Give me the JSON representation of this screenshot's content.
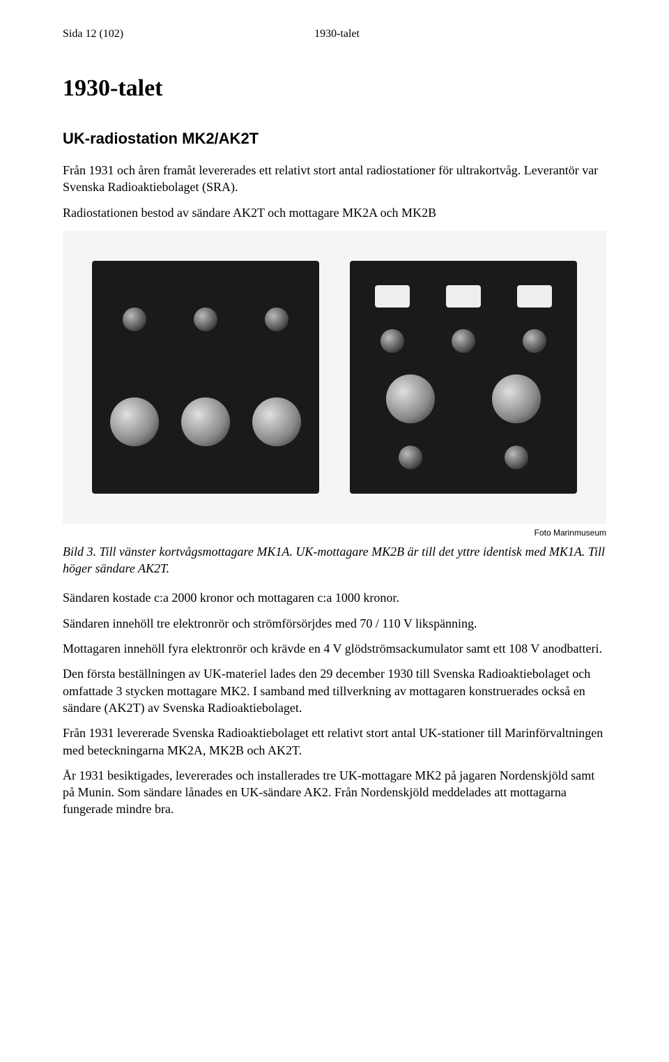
{
  "header": {
    "page_ref": "Sida 12 (102)",
    "section_ref": "1930-talet"
  },
  "title": "1930-talet",
  "section_heading": "UK-radiostation MK2/AK2T",
  "intro_paragraphs": [
    "Från 1931 och åren framåt levererades ett relativt stort antal radiostationer för ultrakortvåg. Leverantör var Svenska Radioaktiebolaget (SRA).",
    "Radiostationen bestod av sändare AK2T och mottagare MK2A och MK2B"
  ],
  "figure": {
    "credit": "Foto Marinmuseum",
    "caption": "Bild 3. Till vänster kortvågsmottagare MK1A. UK-mottagare MK2B är till det yttre identisk med MK1A. Till höger sändare AK2T."
  },
  "body_paragraphs": [
    "Sändaren kostade c:a 2000 kronor och mottagaren c:a 1000 kronor.",
    "Sändaren innehöll tre elektronrör och strömförsörjdes med 70 / 110 V likspänning.",
    "Mottagaren innehöll fyra elektronrör och krävde en 4 V glödströmsackumulator samt ett 108 V anodbatteri.",
    "Den första beställningen av UK-materiel lades den 29 december 1930 till Svenska Radioaktiebolaget och omfattade 3 stycken mottagare MK2. I samband med tillverkning av mottagaren konstruerades också en sändare (AK2T) av Svenska Radioaktiebolaget.",
    "Från 1931 levererade Svenska Radioaktiebolaget ett relativt stort antal UK-stationer till Marinförvaltningen med beteckningarna MK2A, MK2B och AK2T.",
    "År 1931 besiktigades, levererades och installerades tre UK-mottagare MK2 på jagaren Nordenskjöld samt på Munin. Som sändare lånades en UK-sändare AK2. Från Nordenskjöld meddelades att mottagarna fungerade mindre bra."
  ]
}
